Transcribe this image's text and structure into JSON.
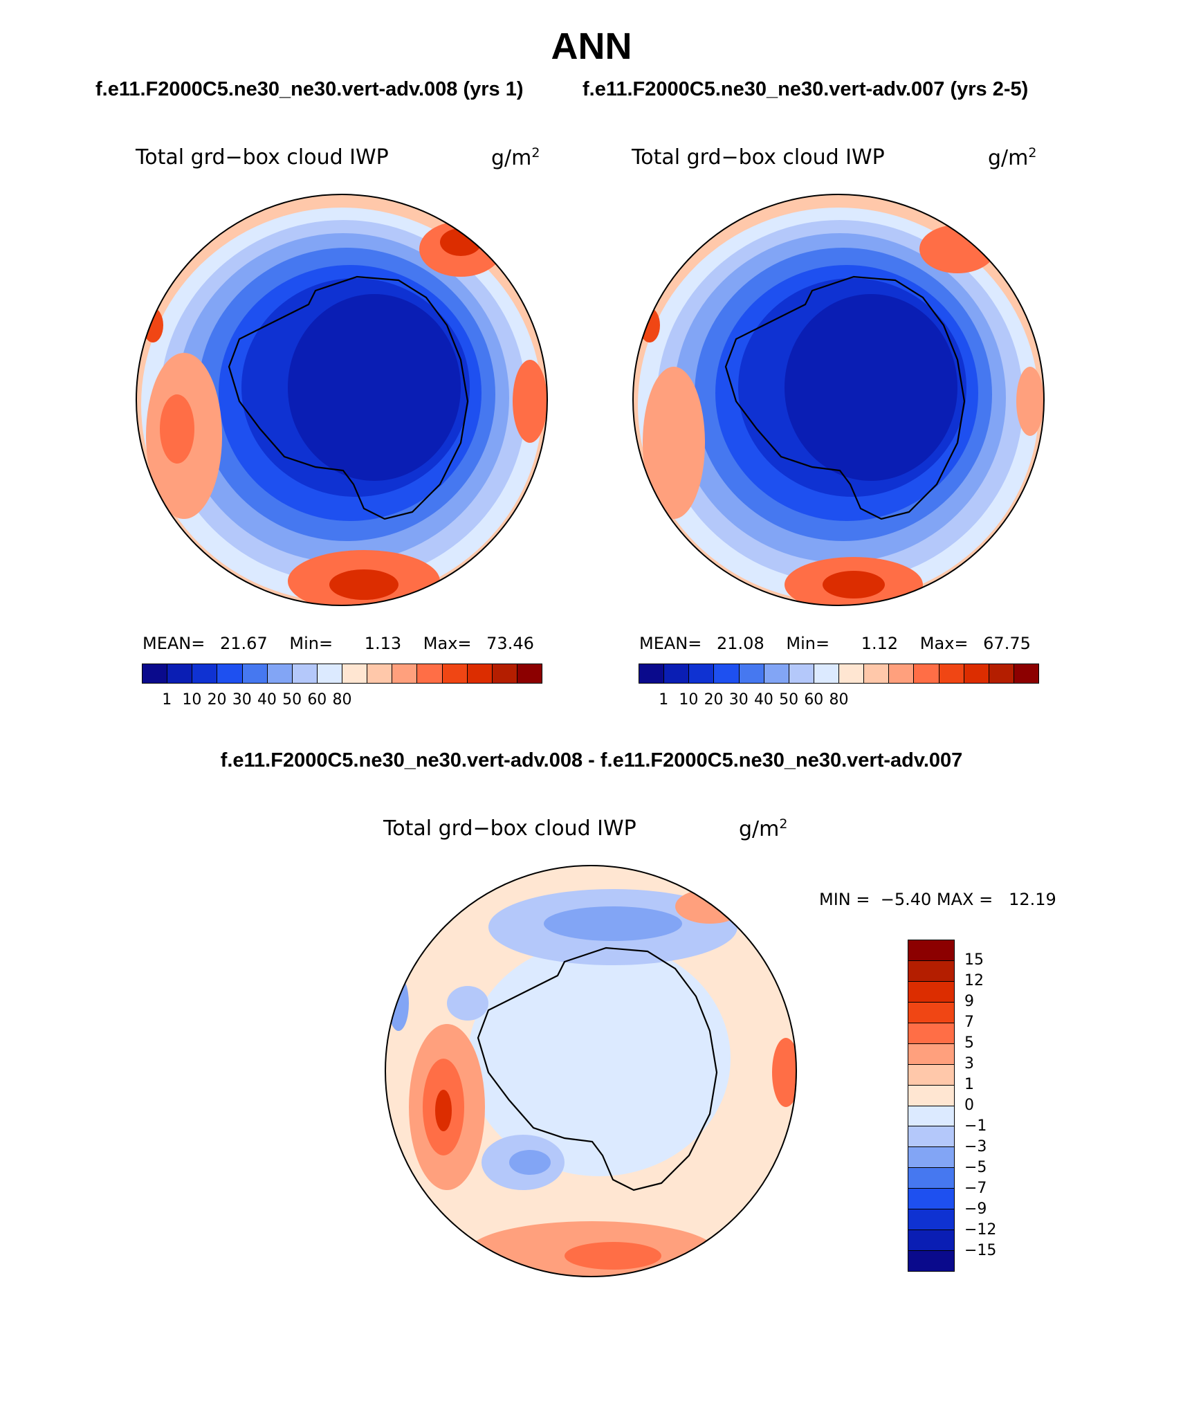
{
  "main_title": "ANN",
  "case1_header": "f.e11.F2000C5.ne30_ne30.vert-adv.008 (yrs 1)",
  "case2_header": "f.e11.F2000C5.ne30_ne30.vert-adv.007 (yrs 2-5)",
  "diff_header": "f.e11.F2000C5.ne30_ne30.vert-adv.008 - f.e11.F2000C5.ne30_ne30.vert-adv.007",
  "panels": [
    {
      "field_label": "Total grd−box cloud IWP",
      "units_base": "g/m",
      "units_exp": "2",
      "stats": {
        "mean_label": "MEAN=",
        "mean": "21.67",
        "min_label": "Min=",
        "min": "1.13",
        "max_label": "Max=",
        "max": "73.46"
      }
    },
    {
      "field_label": "Total grd−box cloud IWP",
      "units_base": "g/m",
      "units_exp": "2",
      "stats": {
        "mean_label": "MEAN=",
        "mean": "21.08",
        "min_label": "Min=",
        "min": "1.12",
        "max_label": "Max=",
        "max": "67.75"
      }
    }
  ],
  "diff_panel": {
    "field_label": "Total grd−box cloud IWP",
    "units_base": "g/m",
    "units_exp": "2",
    "minmax": "MIN =  −5.40 MAX =   12.19"
  },
  "colorbar_levels": [
    "1",
    "10",
    "20",
    "30",
    "40",
    "50",
    "60",
    "80"
  ],
  "colorbar_colors": [
    "#0a0a8c",
    "#0a1eb4",
    "#0f32d2",
    "#1e50f0",
    "#4678f0",
    "#82a5f5",
    "#b4c8fa",
    "#dceaff",
    "#ffe6d2",
    "#ffc8aa",
    "#ffa07d",
    "#ff6e46",
    "#f04614",
    "#dc2d00",
    "#b41e00",
    "#8c0000"
  ],
  "diff_levels": [
    "15",
    "12",
    "9",
    "7",
    "5",
    "3",
    "1",
    "0",
    "−1",
    "−3",
    "−5",
    "−7",
    "−9",
    "−12",
    "−15"
  ],
  "diff_colors": [
    "#8c0000",
    "#b41e00",
    "#dc2d00",
    "#f04614",
    "#ff6e46",
    "#ffa07d",
    "#ffc8aa",
    "#ffe6d2",
    "#dceaff",
    "#b4c8fa",
    "#82a5f5",
    "#4678f0",
    "#1e50f0",
    "#0f32d2",
    "#0a1eb4",
    "#0a0a8c"
  ]
}
